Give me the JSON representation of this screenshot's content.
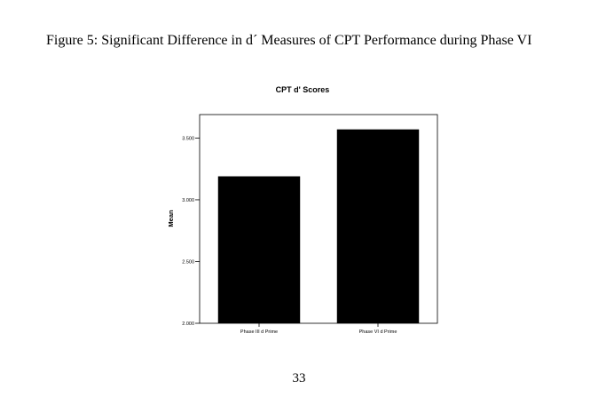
{
  "figure_caption": "Figure 5: Significant Difference in d´ Measures of CPT Performance during Phase VI",
  "page_number": "33",
  "chart_data": {
    "type": "bar",
    "title": "CPT d' Scores",
    "xlabel": "",
    "ylabel": "Mean",
    "categories": [
      "Phase III d Prime",
      "Phase VI d Prime"
    ],
    "values": [
      3.19,
      3.57
    ],
    "ylim": [
      2.0,
      3.69
    ],
    "yticks": [
      2.0,
      2.5,
      3.0,
      3.5
    ],
    "ytick_labels": [
      "2.000",
      "2.500",
      "3.000",
      "3.500"
    ],
    "grid": false,
    "bar_color": "#000000"
  }
}
